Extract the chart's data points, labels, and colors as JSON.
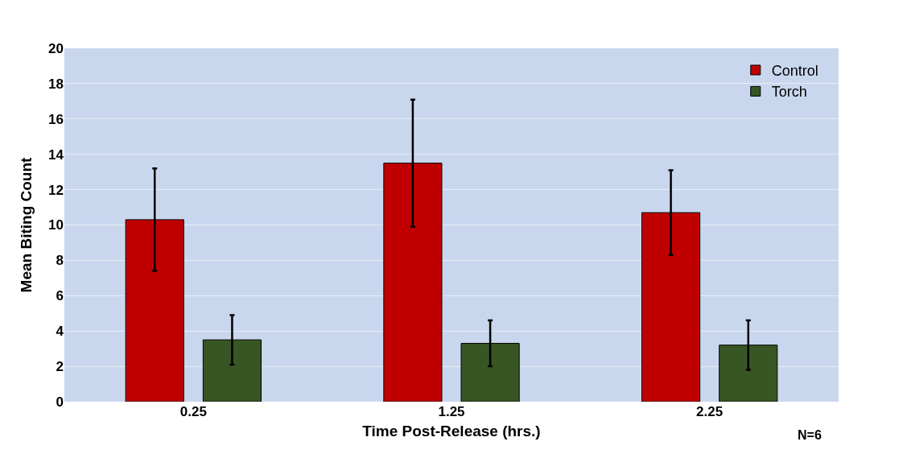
{
  "chart_data": {
    "type": "bar",
    "xlabel": "Time Post-Release (hrs.)",
    "ylabel": "Mean Biting Count",
    "categories": [
      "0.25",
      "1.25",
      "2.25"
    ],
    "series": [
      {
        "name": "Control",
        "color": "#c00000",
        "values": [
          10.3,
          13.5,
          10.7
        ],
        "errors": [
          2.9,
          3.6,
          2.4
        ]
      },
      {
        "name": "Torch",
        "color": "#375623",
        "values": [
          3.5,
          3.3,
          3.2
        ],
        "errors": [
          1.4,
          1.3,
          1.4
        ]
      }
    ],
    "ylim": [
      0,
      20
    ],
    "yticks": [
      0,
      2,
      4,
      6,
      8,
      10,
      12,
      14,
      16,
      18,
      20
    ],
    "grid": "y",
    "legend": "top right",
    "annotations": [
      "N=6"
    ]
  }
}
